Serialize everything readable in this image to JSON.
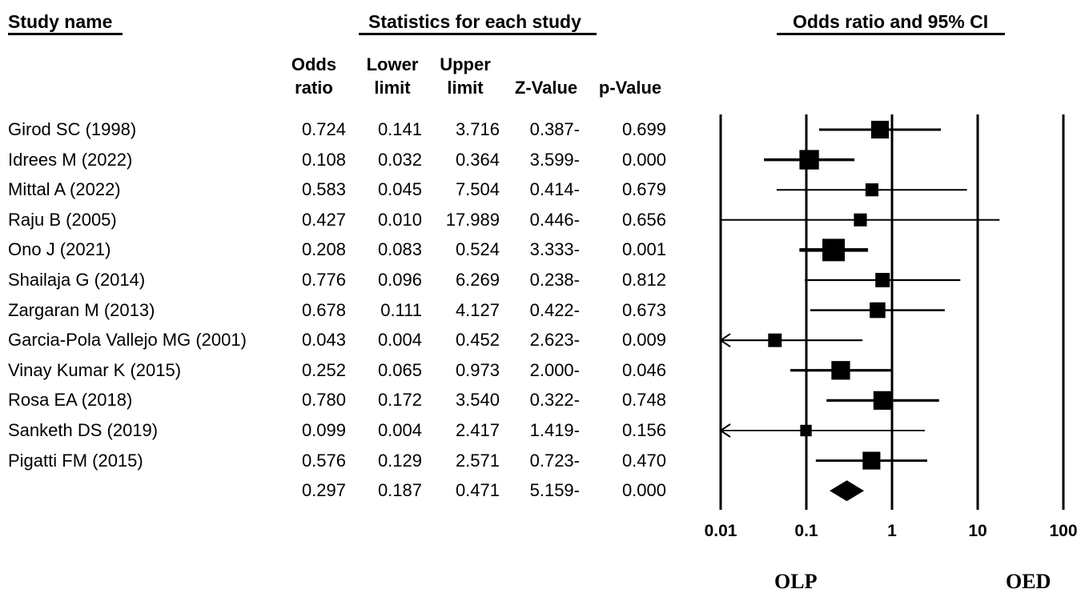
{
  "headers": {
    "study_name": "Study name",
    "statistics": "Statistics for each study",
    "or_ci": "Odds ratio and 95% CI"
  },
  "columns": [
    {
      "line1": "Odds",
      "line2": "ratio"
    },
    {
      "line1": "Lower",
      "line2": "limit"
    },
    {
      "line1": "Upper",
      "line2": "limit"
    },
    {
      "line1": "",
      "line2": "Z-Value"
    },
    {
      "line1": "",
      "line2": "p-Value"
    }
  ],
  "rows": [
    {
      "study": "Girod SC (1998)",
      "or": "0.724",
      "lower": "0.141",
      "upper": "3.716",
      "z": "0.387-",
      "p": "0.699"
    },
    {
      "study": "Idrees M (2022)",
      "or": "0.108",
      "lower": "0.032",
      "upper": "0.364",
      "z": "3.599-",
      "p": "0.000"
    },
    {
      "study": "Mittal A (2022)",
      "or": "0.583",
      "lower": "0.045",
      "upper": "7.504",
      "z": "0.414-",
      "p": "0.679"
    },
    {
      "study": "Raju B (2005)",
      "or": "0.427",
      "lower": "0.010",
      "upper": "17.989",
      "z": "0.446-",
      "p": "0.656"
    },
    {
      "study": "Ono J (2021)",
      "or": "0.208",
      "lower": "0.083",
      "upper": "0.524",
      "z": "3.333-",
      "p": "0.001"
    },
    {
      "study": "Shailaja G (2014)",
      "or": "0.776",
      "lower": "0.096",
      "upper": "6.269",
      "z": "0.238-",
      "p": "0.812"
    },
    {
      "study": "Zargaran M (2013)",
      "or": "0.678",
      "lower": "0.111",
      "upper": "4.127",
      "z": "0.422-",
      "p": "0.673"
    },
    {
      "study": "Garcia-Pola Vallejo MG (2001)",
      "or": "0.043",
      "lower": "0.004",
      "upper": "0.452",
      "z": "2.623-",
      "p": "0.009"
    },
    {
      "study": "Vinay Kumar K (2015)",
      "or": "0.252",
      "lower": "0.065",
      "upper": "0.973",
      "z": "2.000-",
      "p": "0.046"
    },
    {
      "study": "Rosa EA (2018)",
      "or": "0.780",
      "lower": "0.172",
      "upper": "3.540",
      "z": "0.322-",
      "p": "0.748"
    },
    {
      "study": "Sanketh DS (2019)",
      "or": "0.099",
      "lower": "0.004",
      "upper": "2.417",
      "z": "1.419-",
      "p": "0.156"
    },
    {
      "study": "Pigatti FM (2015)",
      "or": "0.576",
      "lower": "0.129",
      "upper": "2.571",
      "z": "0.723-",
      "p": "0.470"
    }
  ],
  "summary": {
    "study": "",
    "or": "0.297",
    "lower": "0.187",
    "upper": "0.471",
    "z": "5.159-",
    "p": "0.000"
  },
  "chart_data": {
    "type": "forest",
    "x_scale": "log",
    "xlim": [
      0.01,
      100
    ],
    "ticks": [
      "0.01",
      "0.1",
      "1",
      "10",
      "100"
    ],
    "favours_left": "OLP",
    "favours_right": "OED",
    "series": [
      {
        "study": "Girod SC (1998)",
        "or": 0.724,
        "lower": 0.141,
        "upper": 3.716,
        "weight": 3
      },
      {
        "study": "Idrees M (2022)",
        "or": 0.108,
        "lower": 0.032,
        "upper": 0.364,
        "weight": 4
      },
      {
        "study": "Mittal A (2022)",
        "or": 0.583,
        "lower": 0.045,
        "upper": 7.504,
        "weight": 1
      },
      {
        "study": "Raju B (2005)",
        "or": 0.427,
        "lower": 0.01,
        "upper": 17.989,
        "weight": 1
      },
      {
        "study": "Ono J (2021)",
        "or": 0.208,
        "lower": 0.083,
        "upper": 0.524,
        "weight": 6
      },
      {
        "study": "Shailaja G (2014)",
        "or": 0.776,
        "lower": 0.096,
        "upper": 6.269,
        "weight": 1.5
      },
      {
        "study": "Zargaran M (2013)",
        "or": 0.678,
        "lower": 0.111,
        "upper": 4.127,
        "weight": 2
      },
      {
        "study": "Garcia-Pola Vallejo MG (2001)",
        "or": 0.043,
        "lower": 0.004,
        "upper": 0.452,
        "weight": 1.2
      },
      {
        "study": "Vinay Kumar K (2015)",
        "or": 0.252,
        "lower": 0.065,
        "upper": 0.973,
        "weight": 3.5
      },
      {
        "study": "Rosa EA (2018)",
        "or": 0.78,
        "lower": 0.172,
        "upper": 3.54,
        "weight": 3.5
      },
      {
        "study": "Sanketh DS (2019)",
        "or": 0.099,
        "lower": 0.004,
        "upper": 2.417,
        "weight": 0.6
      },
      {
        "study": "Pigatti FM (2015)",
        "or": 0.576,
        "lower": 0.129,
        "upper": 2.571,
        "weight": 3
      }
    ],
    "summary": {
      "or": 0.297,
      "lower": 0.187,
      "upper": 0.471
    }
  }
}
